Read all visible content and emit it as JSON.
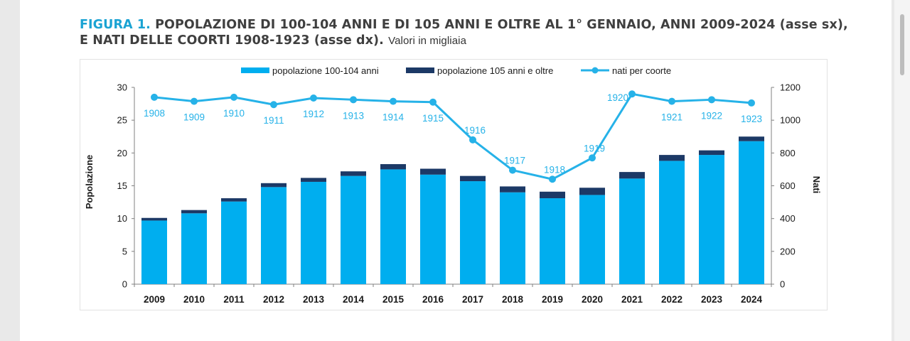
{
  "caption": {
    "figure_label": "FIGURA 1.",
    "title": "POPOLAZIONE DI 100-104 ANNI E DI 105 ANNI E OLTRE AL 1° GENNAIO, ANNI 2009-2024 (asse sx),",
    "title_line2": "E NATI DELLE COORTI 1908-1923 (asse dx).",
    "note": "Valori in migliaia"
  },
  "colors": {
    "pop_100_104": "#00aeef",
    "pop_105_plus": "#1c3966",
    "nati": "#26b2e8",
    "caption_accent": "#1aa3d3",
    "grid": "#d9d9d9"
  },
  "chart_data": {
    "type": "bar",
    "stacked": true,
    "categories": [
      "2009",
      "2010",
      "2011",
      "2012",
      "2013",
      "2014",
      "2015",
      "2016",
      "2017",
      "2018",
      "2019",
      "2020",
      "2021",
      "2022",
      "2023",
      "2024"
    ],
    "series": [
      {
        "name": "popolazione 100-104 anni",
        "axis": "left",
        "values": [
          9.7,
          10.8,
          12.6,
          14.8,
          15.6,
          16.5,
          17.5,
          16.7,
          15.7,
          14.0,
          13.1,
          13.6,
          16.1,
          18.8,
          19.7,
          21.8
        ]
      },
      {
        "name": "popolazione 105 anni e oltre",
        "axis": "left",
        "values": [
          0.4,
          0.5,
          0.5,
          0.6,
          0.6,
          0.7,
          0.8,
          0.9,
          0.8,
          0.9,
          1.0,
          1.1,
          1.0,
          0.9,
          0.7,
          0.7
        ]
      },
      {
        "name": "nati per coorte",
        "type": "line",
        "axis": "right",
        "values": [
          1140,
          1115,
          1140,
          1095,
          1135,
          1125,
          1115,
          1110,
          880,
          695,
          640,
          770,
          1160,
          1115,
          1125,
          1105
        ],
        "point_labels": [
          "1908",
          "1909",
          "1910",
          "1911",
          "1912",
          "1913",
          "1914",
          "1915",
          "1916",
          "1917",
          "1918",
          "1919",
          "1920",
          "1921",
          "1922",
          "1923"
        ]
      }
    ],
    "ylabel": "Popolazione",
    "y2label": "Nati",
    "ylim": [
      0,
      30
    ],
    "y2lim": [
      0,
      1200
    ],
    "yticks": [
      "0",
      "5",
      "10",
      "15",
      "20",
      "25",
      "30"
    ],
    "y2ticks": [
      "0",
      "200",
      "400",
      "600",
      "800",
      "1000",
      "1200"
    ],
    "legend_position": "top",
    "grid": false
  }
}
